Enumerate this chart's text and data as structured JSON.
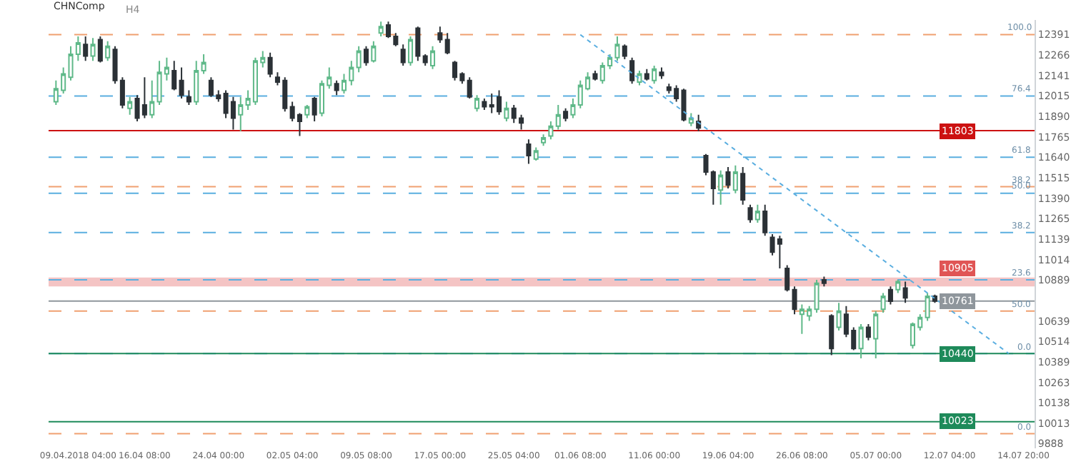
{
  "chart_data": {
    "type": "candlestick",
    "title": "CHNComp",
    "subtitle": "H4",
    "categories": [
      null,
      null,
      null,
      "09.04.2018 04:00",
      null,
      null,
      null,
      null,
      null,
      null,
      null,
      null,
      "16.04 08:00",
      null,
      null,
      null,
      null,
      null,
      null,
      null,
      null,
      null,
      "24.04 00:00",
      null,
      null,
      null,
      null,
      null,
      null,
      null,
      null,
      null,
      "02.05 04:00",
      null,
      null,
      null,
      null,
      null,
      null,
      null,
      null,
      null,
      "09.05 08:00",
      null,
      null,
      null,
      null,
      null,
      null,
      null,
      null,
      null,
      "17.05 00:00",
      null,
      null,
      null,
      null,
      null,
      null,
      null,
      null,
      null,
      "25.05 04:00",
      null,
      null,
      null,
      null,
      null,
      null,
      null,
      null,
      "01.06 08:00",
      null,
      null,
      null,
      null,
      null,
      null,
      null,
      null,
      null,
      "11.06 00:00",
      null,
      null,
      null,
      null,
      null,
      null,
      null,
      null,
      null,
      "19.06 04:00",
      null,
      null,
      null,
      null,
      null,
      null,
      null,
      null,
      null,
      "26.06 08:00",
      null,
      null,
      null,
      null,
      null,
      null,
      null,
      null,
      null,
      "05.07 00:00",
      null,
      null,
      null,
      null,
      null,
      null,
      null,
      null,
      null,
      "12.07 04:00",
      null,
      null,
      null,
      null,
      null,
      null,
      null,
      null,
      null,
      "14.07 20:00"
    ],
    "ohlc": [
      [
        11980,
        12110,
        11960,
        12060
      ],
      [
        12050,
        12190,
        12030,
        12150
      ],
      [
        12130,
        12320,
        12110,
        12270
      ],
      [
        12270,
        12380,
        12230,
        12340
      ],
      [
        12330,
        12380,
        12230,
        12260
      ],
      [
        12260,
        12370,
        12230,
        12330
      ],
      [
        12360,
        12380,
        12220,
        12230
      ],
      [
        12250,
        12350,
        12230,
        12320
      ],
      [
        12300,
        12320,
        12090,
        12110
      ],
      [
        12110,
        12130,
        11940,
        11960
      ],
      [
        11940,
        12010,
        11900,
        11980
      ],
      [
        12000,
        12020,
        11860,
        11880
      ],
      [
        11960,
        12130,
        11880,
        11900
      ],
      [
        11900,
        12110,
        11880,
        11980
      ],
      [
        11980,
        12230,
        11960,
        12160
      ],
      [
        12150,
        12250,
        12110,
        12190
      ],
      [
        12170,
        12230,
        12050,
        12060
      ],
      [
        12110,
        12190,
        12000,
        12020
      ],
      [
        12010,
        12050,
        11960,
        11980
      ],
      [
        11980,
        12230,
        11960,
        12170
      ],
      [
        12170,
        12270,
        12150,
        12220
      ],
      [
        12110,
        12130,
        12010,
        12020
      ],
      [
        12020,
        12050,
        11980,
        12000
      ],
      [
        12030,
        12050,
        11880,
        11910
      ],
      [
        11980,
        12010,
        11810,
        11880
      ],
      [
        11900,
        12010,
        11800,
        11960
      ],
      [
        11960,
        12050,
        11930,
        12000
      ],
      [
        11980,
        12250,
        11960,
        12230
      ],
      [
        12220,
        12290,
        12190,
        12250
      ],
      [
        12250,
        12280,
        12130,
        12150
      ],
      [
        12130,
        12160,
        12080,
        12100
      ],
      [
        12110,
        12130,
        11920,
        11940
      ],
      [
        11950,
        11980,
        11860,
        11880
      ],
      [
        11900,
        11910,
        11770,
        11860
      ],
      [
        11900,
        11960,
        11880,
        11950
      ],
      [
        12000,
        12010,
        11860,
        11900
      ],
      [
        11910,
        12110,
        11890,
        12090
      ],
      [
        12080,
        12190,
        12060,
        12130
      ],
      [
        12090,
        12110,
        12020,
        12050
      ],
      [
        12050,
        12150,
        12030,
        12110
      ],
      [
        12110,
        12230,
        12080,
        12190
      ],
      [
        12190,
        12320,
        12160,
        12290
      ],
      [
        12300,
        12320,
        12200,
        12220
      ],
      [
        12230,
        12350,
        12220,
        12320
      ],
      [
        12400,
        12470,
        12380,
        12440
      ],
      [
        12450,
        12470,
        12370,
        12380
      ],
      [
        12380,
        12400,
        12320,
        12330
      ],
      [
        12300,
        12330,
        12200,
        12220
      ],
      [
        12220,
        12380,
        12200,
        12360
      ],
      [
        12430,
        12440,
        12230,
        12260
      ],
      [
        12260,
        12270,
        12200,
        12220
      ],
      [
        12200,
        12320,
        12180,
        12290
      ],
      [
        12400,
        12440,
        12340,
        12360
      ],
      [
        12360,
        12400,
        12270,
        12280
      ],
      [
        12220,
        12230,
        12110,
        12130
      ],
      [
        12150,
        12160,
        12090,
        12110
      ],
      [
        12110,
        12130,
        12000,
        12010
      ],
      [
        11940,
        12020,
        11920,
        12000
      ],
      [
        11980,
        12000,
        11930,
        11950
      ],
      [
        11960,
        12030,
        11910,
        11950
      ],
      [
        12010,
        12050,
        11900,
        11920
      ],
      [
        11880,
        11980,
        11860,
        11940
      ],
      [
        11940,
        11960,
        11850,
        11880
      ],
      [
        11880,
        11900,
        11810,
        11850
      ],
      [
        11720,
        11750,
        11600,
        11650
      ],
      [
        11630,
        11700,
        11620,
        11680
      ],
      [
        11730,
        11780,
        11710,
        11760
      ],
      [
        11770,
        11860,
        11750,
        11830
      ],
      [
        11830,
        11960,
        11810,
        11900
      ],
      [
        11920,
        11940,
        11860,
        11880
      ],
      [
        11900,
        12000,
        11880,
        11960
      ],
      [
        11960,
        12110,
        11940,
        12080
      ],
      [
        12060,
        12160,
        12050,
        12130
      ],
      [
        12150,
        12170,
        12110,
        12120
      ],
      [
        12110,
        12220,
        12090,
        12200
      ],
      [
        12200,
        12270,
        12180,
        12250
      ],
      [
        12250,
        12380,
        12230,
        12330
      ],
      [
        12320,
        12330,
        12240,
        12260
      ],
      [
        12230,
        12250,
        12090,
        12110
      ],
      [
        12100,
        12170,
        12080,
        12150
      ],
      [
        12150,
        12180,
        12110,
        12120
      ],
      [
        12110,
        12200,
        12090,
        12180
      ],
      [
        12160,
        12190,
        12120,
        12140
      ],
      [
        12070,
        12090,
        12030,
        12050
      ],
      [
        12060,
        12080,
        11980,
        12000
      ],
      [
        12050,
        12060,
        11860,
        11870
      ],
      [
        11850,
        11910,
        11830,
        11880
      ],
      [
        11860,
        11900,
        11800,
        11820
      ],
      [
        11650,
        11660,
        11530,
        11550
      ],
      [
        11550,
        11560,
        11350,
        11450
      ],
      [
        11440,
        11560,
        11350,
        11530
      ],
      [
        11550,
        11580,
        11450,
        11470
      ],
      [
        11440,
        11590,
        11420,
        11550
      ],
      [
        11540,
        11580,
        11350,
        11380
      ],
      [
        11330,
        11350,
        11240,
        11260
      ],
      [
        11260,
        11350,
        11240,
        11310
      ],
      [
        11310,
        11350,
        11160,
        11180
      ],
      [
        11150,
        11170,
        11040,
        11060
      ],
      [
        11140,
        11160,
        10960,
        11110
      ],
      [
        10960,
        10980,
        10820,
        10830
      ],
      [
        10830,
        10850,
        10680,
        10710
      ],
      [
        10680,
        10740,
        10560,
        10710
      ],
      [
        10670,
        10730,
        10640,
        10710
      ],
      [
        10710,
        10890,
        10690,
        10870
      ],
      [
        10890,
        10910,
        10850,
        10870
      ],
      [
        10670,
        10680,
        10430,
        10470
      ],
      [
        10600,
        10750,
        10580,
        10700
      ],
      [
        10680,
        10730,
        10540,
        10560
      ],
      [
        10580,
        10600,
        10460,
        10470
      ],
      [
        10470,
        10620,
        10410,
        10600
      ],
      [
        10600,
        10620,
        10520,
        10540
      ],
      [
        10530,
        10700,
        10410,
        10680
      ],
      [
        10710,
        10810,
        10690,
        10790
      ],
      [
        10830,
        10850,
        10740,
        10760
      ],
      [
        10830,
        10890,
        10810,
        10880
      ],
      [
        10840,
        10880,
        10750,
        10780
      ],
      [
        10490,
        10630,
        10470,
        10620
      ],
      [
        10600,
        10680,
        10580,
        10660
      ],
      [
        10660,
        10810,
        10640,
        10790
      ],
      [
        10790,
        10800,
        10750,
        10761
      ],
      null,
      null,
      null,
      null,
      null,
      null,
      null,
      null,
      null,
      null,
      null,
      null
    ],
    "series": [
      {
        "type": "line",
        "color": "#5aaee0",
        "line_style": "dotted",
        "values": [
          null,
          null,
          null,
          null,
          null,
          null,
          null,
          null,
          null,
          null,
          null,
          null,
          null,
          null,
          null,
          null,
          null,
          null,
          null,
          null,
          null,
          null,
          null,
          null,
          null,
          null,
          null,
          null,
          null,
          null,
          null,
          null,
          null,
          null,
          null,
          null,
          null,
          null,
          null,
          null,
          null,
          null,
          null,
          null,
          null,
          null,
          null,
          null,
          null,
          null,
          null,
          null,
          null,
          null,
          null,
          null,
          null,
          null,
          null,
          null,
          null,
          null,
          null,
          null,
          null,
          null,
          null,
          null,
          null,
          null,
          null,
          12390,
          null,
          null,
          null,
          null,
          null,
          null,
          null,
          null,
          null,
          null,
          null,
          null,
          null,
          null,
          null,
          null,
          null,
          null,
          null,
          null,
          null,
          null,
          null,
          null,
          null,
          null,
          null,
          null,
          null,
          null,
          null,
          null,
          null,
          null,
          null,
          null,
          null,
          null,
          null,
          null,
          null,
          null,
          null,
          null,
          null,
          null,
          null,
          null,
          null,
          null,
          null,
          null,
          null,
          null,
          null,
          null,
          null,
          10440,
          null,
          null
        ]
      }
    ],
    "ylim": [
      9860,
      12480
    ],
    "yticks": [
      9888,
      10013,
      10138,
      10263,
      10389,
      10514,
      10639,
      10889,
      11014,
      11139,
      11265,
      11390,
      11515,
      11640,
      11765,
      11890,
      12015,
      12141,
      12266,
      12391
    ],
    "ref_lines": [
      {
        "axis": "y",
        "value": 12390,
        "color": "#f0a070",
        "line_style": "dashed"
      },
      {
        "axis": "y",
        "value": 12015,
        "color": "#5aaee0",
        "line_style": "dashed"
      },
      {
        "axis": "y",
        "value": 11803,
        "label": "11803",
        "color": "#cc1111",
        "line_style": "solid"
      },
      {
        "axis": "y",
        "value": 11640,
        "color": "#5aaee0",
        "line_style": "dashed"
      },
      {
        "axis": "y",
        "value": 11460,
        "color": "#f0a070",
        "line_style": "dashed"
      },
      {
        "axis": "y",
        "value": 11420,
        "color": "#5aaee0",
        "line_style": "dashed"
      },
      {
        "axis": "y",
        "value": 11180,
        "color": "#5aaee0",
        "line_style": "dashed"
      },
      {
        "axis": "y",
        "value": 10890,
        "color": "#5aaee0",
        "line_style": "dashed"
      },
      {
        "axis": "y",
        "value": 10761,
        "label": "10761",
        "color": "#8f969c",
        "line_style": "solid"
      },
      {
        "axis": "y",
        "value": 10700,
        "color": "#f0a070",
        "line_style": "dashed"
      },
      {
        "axis": "y",
        "value": 10440,
        "color": "#5aaee0",
        "line_style": "dashed"
      },
      {
        "axis": "y",
        "value": 10440,
        "label": "10440",
        "color": "#1e8a5a",
        "line_style": "solid"
      },
      {
        "axis": "y",
        "value": 10023,
        "label": "10023",
        "color": "#1e8a5a",
        "line_style": "solid"
      },
      {
        "axis": "y",
        "value": 9950,
        "color": "#f0a070",
        "line_style": "dashed"
      }
    ],
    "annotations": [
      {
        "text": "100.0",
        "y": 12390
      },
      {
        "text": "76.4",
        "y": 12015
      },
      {
        "text": "61.8",
        "y": 11640
      },
      {
        "text": "38.2",
        "y": 11460
      },
      {
        "text": "50.0",
        "y": 11420
      },
      {
        "text": "38.2",
        "y": 11180
      },
      {
        "text": "23.6",
        "y": 10890
      },
      {
        "text": "50.0",
        "y": 10700
      },
      {
        "text": "0.0",
        "y": 10440
      },
      {
        "text": "0.0",
        "y": 9950
      }
    ],
    "bands": [
      {
        "axis": "y",
        "from": 10850,
        "to": 10905,
        "label": "10905",
        "color": "#e05555"
      }
    ]
  }
}
